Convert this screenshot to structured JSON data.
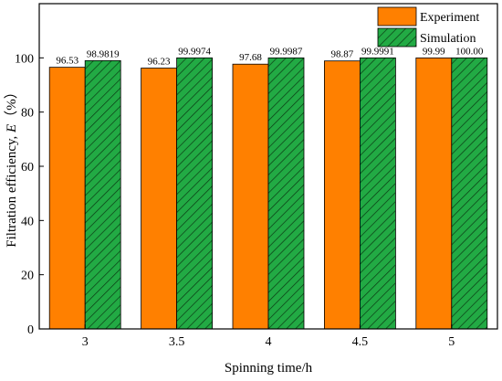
{
  "chart_data": {
    "type": "bar",
    "xlabel": "Spinning time/h",
    "ylabel_main": "Filtration efficiency, ",
    "ylabel_symbol": "E",
    "ylabel_unit": "（%）",
    "categories": [
      "3",
      "3.5",
      "4",
      "4.5",
      "5"
    ],
    "ylim": [
      0,
      120
    ],
    "yticks": [
      0,
      20,
      40,
      60,
      80,
      100
    ],
    "grid": false,
    "legend_position": "top-right",
    "series": [
      {
        "name": "Experiment",
        "color": "#ff8000",
        "pattern": "solid",
        "values": [
          96.53,
          96.23,
          97.68,
          98.87,
          99.99
        ],
        "labels": [
          "96.53",
          "96.23",
          "97.68",
          "98.87",
          "99.99"
        ]
      },
      {
        "name": "Simulation",
        "color": "#22aa44",
        "pattern": "hatched",
        "values": [
          98.9819,
          99.9974,
          99.9987,
          99.9991,
          100.0
        ],
        "labels": [
          "98.9819",
          "99.9974",
          "99.9987",
          "99.9991",
          "100.00"
        ]
      }
    ]
  }
}
